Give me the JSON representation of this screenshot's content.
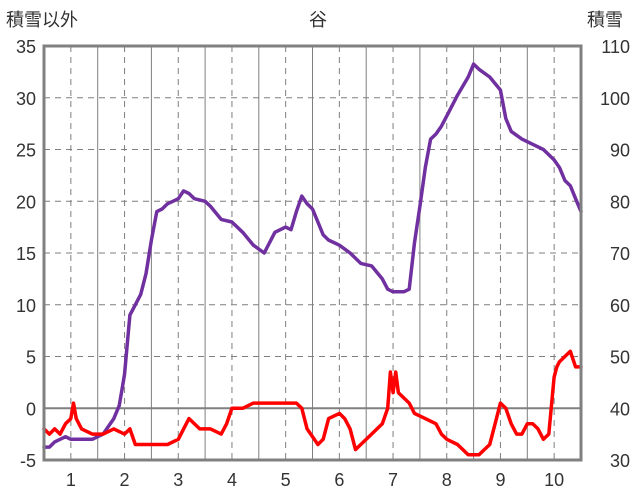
{
  "chart_data": {
    "type": "line",
    "title": "谷",
    "left_axis_label": "積雪以外",
    "right_axis_label": "積雪",
    "x_ticks": [
      "1",
      "2",
      "3",
      "4",
      "5",
      "6",
      "7",
      "8",
      "9",
      "10"
    ],
    "xlim": [
      0.5,
      10.5
    ],
    "left_ylim": [
      -5,
      35
    ],
    "left_yticks": [
      "-5",
      "0",
      "5",
      "10",
      "15",
      "20",
      "25",
      "30",
      "35"
    ],
    "right_ylim": [
      30,
      110
    ],
    "right_yticks": [
      "30",
      "40",
      "50",
      "60",
      "70",
      "80",
      "90",
      "100",
      "110"
    ],
    "grid": "dashed",
    "colors": {
      "snow": "#7030a0",
      "other": "#ff0000",
      "axis": "#808080"
    },
    "series": [
      {
        "axis": "right",
        "color": "#7030a0",
        "x": [
          0.5,
          0.6,
          0.7,
          0.8,
          0.9,
          1.0,
          1.2,
          1.4,
          1.6,
          1.8,
          1.9,
          1.95,
          2.0,
          2.1,
          2.2,
          2.3,
          2.4,
          2.5,
          2.6,
          2.7,
          2.8,
          2.9,
          3.0,
          3.1,
          3.2,
          3.3,
          3.5,
          3.6,
          3.8,
          4.0,
          4.2,
          4.4,
          4.6,
          4.8,
          5.0,
          5.1,
          5.2,
          5.3,
          5.4,
          5.5,
          5.6,
          5.7,
          5.8,
          5.9,
          6.0,
          6.2,
          6.4,
          6.6,
          6.8,
          6.9,
          7.0,
          7.2,
          7.3,
          7.4,
          7.5,
          7.6,
          7.7,
          7.8,
          7.9,
          8.0,
          8.2,
          8.4,
          8.5,
          8.6,
          8.8,
          9.0,
          9.1,
          9.2,
          9.4,
          9.6,
          9.8,
          10.0,
          10.1,
          10.2,
          10.3,
          10.4,
          10.5
        ],
        "values": [
          32.5,
          32.5,
          33.5,
          34.0,
          34.5,
          34.0,
          34.0,
          34.0,
          35.0,
          38.0,
          40.5,
          43.5,
          46.5,
          58.0,
          60.0,
          62.0,
          66.0,
          72.5,
          78.0,
          78.5,
          79.5,
          80.0,
          80.5,
          82.0,
          81.5,
          80.5,
          80.0,
          79.0,
          76.5,
          76.0,
          74.0,
          71.5,
          70.0,
          74.0,
          75.0,
          74.5,
          78.0,
          81.0,
          79.5,
          78.5,
          76.0,
          73.5,
          72.5,
          72.0,
          71.5,
          70.0,
          68.0,
          67.5,
          65.0,
          63.0,
          62.5,
          62.5,
          63.0,
          72.0,
          79.0,
          86.5,
          92.0,
          93.0,
          94.5,
          96.5,
          100.5,
          104.0,
          106.5,
          105.5,
          104.0,
          101.5,
          96.0,
          93.5,
          92.0,
          91.0,
          90.0,
          88.0,
          86.5,
          84.0,
          83.0,
          80.5,
          78.0
        ]
      },
      {
        "axis": "left",
        "color": "#ff0000",
        "x": [
          0.5,
          0.6,
          0.7,
          0.8,
          0.9,
          1.0,
          1.05,
          1.1,
          1.2,
          1.4,
          1.6,
          1.8,
          2.0,
          2.1,
          2.2,
          2.4,
          2.6,
          2.8,
          3.0,
          3.1,
          3.2,
          3.3,
          3.4,
          3.6,
          3.8,
          3.9,
          4.0,
          4.2,
          4.4,
          4.6,
          4.8,
          5.0,
          5.2,
          5.3,
          5.4,
          5.6,
          5.7,
          5.8,
          6.0,
          6.1,
          6.2,
          6.3,
          6.4,
          6.6,
          6.8,
          6.9,
          6.95,
          7.0,
          7.05,
          7.1,
          7.2,
          7.3,
          7.4,
          7.6,
          7.8,
          7.9,
          8.0,
          8.2,
          8.4,
          8.6,
          8.8,
          8.9,
          9.0,
          9.1,
          9.2,
          9.3,
          9.4,
          9.5,
          9.6,
          9.7,
          9.8,
          9.9,
          10.0,
          10.05,
          10.1,
          10.2,
          10.3,
          10.4,
          10.5
        ],
        "values": [
          -2.0,
          -2.5,
          -2.0,
          -2.5,
          -1.5,
          -1.0,
          0.5,
          -1.0,
          -2.0,
          -2.5,
          -2.5,
          -2.0,
          -2.5,
          -2.0,
          -3.5,
          -3.5,
          -3.5,
          -3.5,
          -3.0,
          -2.0,
          -1.0,
          -1.5,
          -2.0,
          -2.0,
          -2.5,
          -1.5,
          0.0,
          0.0,
          0.5,
          0.5,
          0.5,
          0.5,
          0.5,
          0.0,
          -2.0,
          -3.5,
          -3.0,
          -1.0,
          -0.5,
          -1.0,
          -2.0,
          -4.0,
          -3.5,
          -2.5,
          -1.5,
          0.0,
          3.5,
          1.5,
          3.5,
          1.5,
          1.0,
          0.5,
          -0.5,
          -1.0,
          -1.5,
          -2.5,
          -3.0,
          -3.5,
          -4.5,
          -4.5,
          -3.5,
          -1.5,
          0.5,
          0.0,
          -1.5,
          -2.5,
          -2.5,
          -1.5,
          -1.5,
          -2.0,
          -3.0,
          -2.5,
          3.0,
          4.0,
          4.5,
          5.0,
          5.5,
          4.0,
          4.0
        ]
      }
    ]
  }
}
